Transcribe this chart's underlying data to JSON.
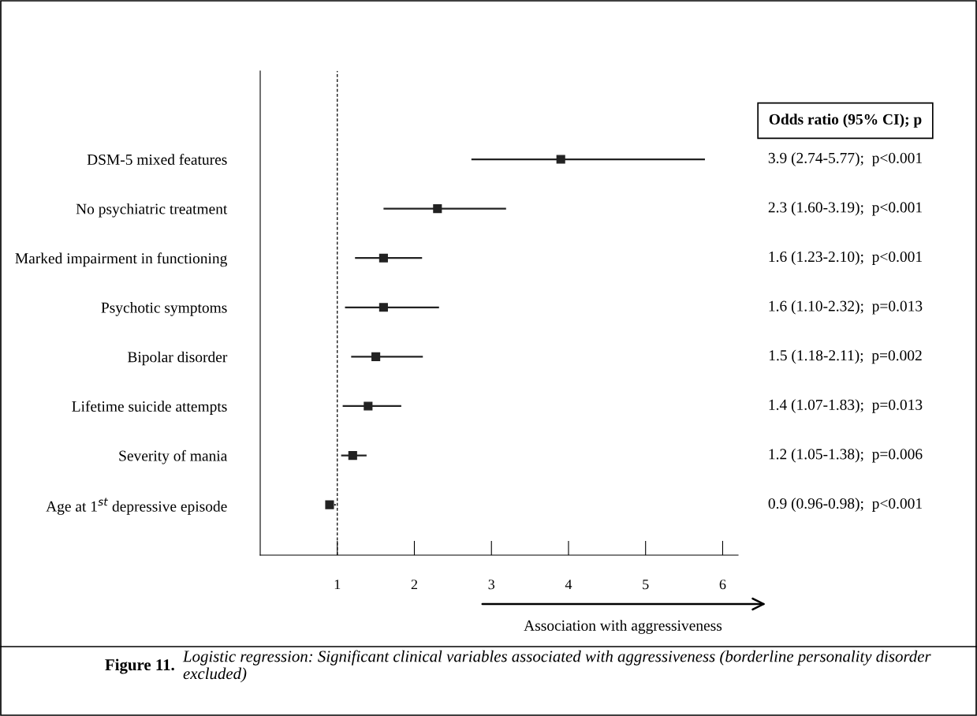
{
  "chart_data": {
    "type": "scatter",
    "orientation": "horizontal",
    "title": "Figure 11.",
    "subtitle": "Logistic regression: Significant clinical variables associated with aggressiveness (borderline personality disorder excluded)",
    "xlabel": "Association with aggressiveness",
    "categories": [
      "DSM-5 mixed features",
      "No psychiatric treatment",
      "Marked impairment in functioning",
      "Psychotic symptoms",
      "Bipolar disorder",
      "Lifetime suicide attempts",
      "Severity of mania",
      "Age at 1$^{st}$ depressive episode"
    ],
    "values": [
      3.9,
      2.3,
      1.6,
      1.6,
      1.5,
      1.4,
      1.2,
      0.9
    ],
    "errors": [
      [
        2.74,
        5.77
      ],
      [
        1.6,
        3.19
      ],
      [
        1.23,
        2.1
      ],
      [
        1.1,
        2.32
      ],
      [
        1.18,
        2.11
      ],
      [
        1.07,
        1.83
      ],
      [
        1.05,
        1.38
      ],
      [
        0.96,
        0.98
      ]
    ],
    "value_labels": [
      "3.9 (2.74-5.77);  p<0.001",
      "2.3 (1.60-3.19);  p<0.001",
      "1.6 (1.23-2.10);  p<0.001",
      "1.6 (1.10-2.32);  p=0.013",
      "1.5 (1.18-2.11);  p=0.002",
      "1.4 (1.07-1.83);  p=0.013",
      "1.2 (1.05-1.38);  p=0.006",
      "0.9 (0.96-0.98);  p<0.001"
    ],
    "legend_title": "Odds ratio (95% CI); p",
    "color": "#222222",
    "marker": "square",
    "xlim": [
      0,
      6.2
    ],
    "xticks": [
      1,
      2,
      3,
      4,
      5,
      6
    ],
    "ref_lines": [
      {
        "axis": "x",
        "value": 1,
        "line_style": "dashed",
        "color": "#000000"
      }
    ],
    "grid": false,
    "legend": false
  }
}
